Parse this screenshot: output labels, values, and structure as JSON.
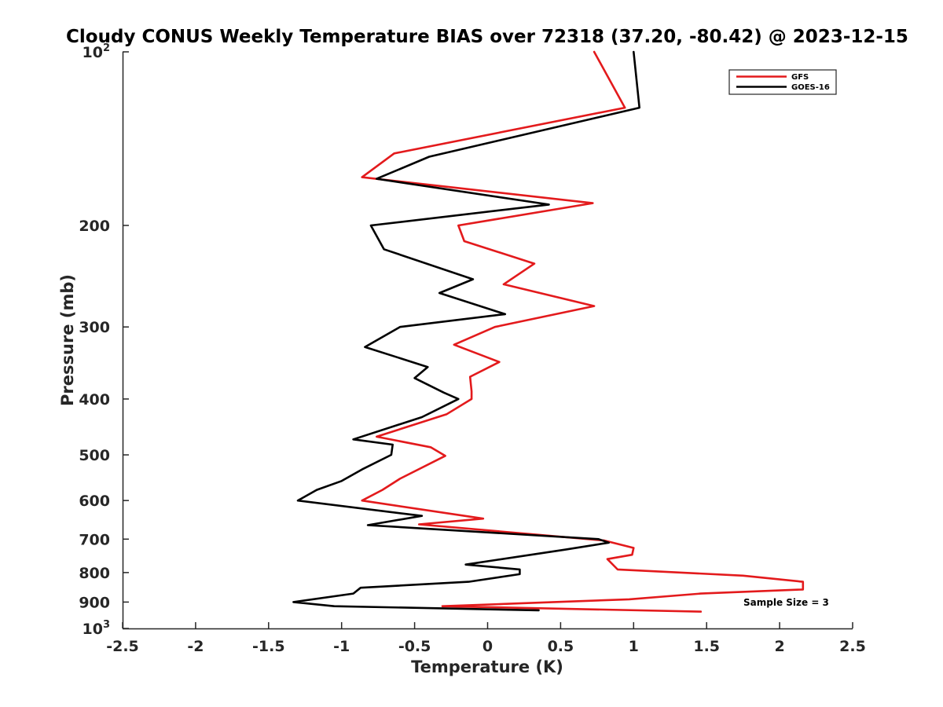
{
  "chart_data": {
    "type": "line",
    "title": "Cloudy CONUS Weekly Temperature BIAS over 72318 (37.20, -80.42) @ 2023-12-15",
    "xlabel": "Temperature (K)",
    "ylabel": "Pressure (mb)",
    "xlim": [
      -2.5,
      2.5
    ],
    "ylim": [
      100,
      1000
    ],
    "y_scale": "log",
    "y_reversed": true,
    "grid": false,
    "legend_position": "top-right",
    "x_ticks": [
      "-2.5",
      "-2",
      "-1.5",
      "-1",
      "-0.5",
      "0",
      "0.5",
      "1",
      "1.5",
      "2",
      "2.5"
    ],
    "x_tick_values": [
      -2.5,
      -2,
      -1.5,
      -1,
      -0.5,
      0,
      0.5,
      1,
      1.5,
      2,
      2.5
    ],
    "y_ticks": [
      {
        "value": 100,
        "base": "10",
        "exp": "2"
      },
      {
        "value": 200,
        "label": "200"
      },
      {
        "value": 300,
        "label": "300"
      },
      {
        "value": 400,
        "label": "400"
      },
      {
        "value": 500,
        "label": "500"
      },
      {
        "value": 600,
        "label": "600"
      },
      {
        "value": 700,
        "label": "700"
      },
      {
        "value": 800,
        "label": "800"
      },
      {
        "value": 900,
        "label": "900"
      },
      {
        "value": 1000,
        "base": "10",
        "exp": "3"
      }
    ],
    "annotation": "Sample Size = 3",
    "series": [
      {
        "name": "GFS",
        "color": "#e31a1c",
        "points": [
          [
            0.73,
            100
          ],
          [
            0.94,
            125
          ],
          [
            -0.64,
            150
          ],
          [
            -0.86,
            165
          ],
          [
            0.72,
            183
          ],
          [
            -0.2,
            200
          ],
          [
            -0.16,
            213
          ],
          [
            0.32,
            233
          ],
          [
            0.11,
            253
          ],
          [
            0.73,
            276
          ],
          [
            0.05,
            300
          ],
          [
            -0.23,
            322
          ],
          [
            0.08,
            345
          ],
          [
            -0.12,
            366
          ],
          [
            -0.11,
            388
          ],
          [
            -0.11,
            400
          ],
          [
            -0.28,
            425
          ],
          [
            -0.76,
            465
          ],
          [
            -0.39,
            485
          ],
          [
            -0.29,
            502
          ],
          [
            -0.6,
            550
          ],
          [
            -0.72,
            575
          ],
          [
            -0.86,
            600
          ],
          [
            -0.03,
            645
          ],
          [
            -0.47,
            660
          ],
          [
            0.8,
            704
          ],
          [
            1.0,
            725
          ],
          [
            0.99,
            745
          ],
          [
            0.82,
            758
          ],
          [
            0.89,
            790
          ],
          [
            1.75,
            810
          ],
          [
            2.16,
            830
          ],
          [
            2.16,
            856
          ],
          [
            1.46,
            870
          ],
          [
            0.97,
            890
          ],
          [
            0.2,
            905
          ],
          [
            -0.31,
            915
          ],
          [
            1.46,
            935
          ]
        ]
      },
      {
        "name": "GOES-16",
        "color": "#000000",
        "points": [
          [
            1.0,
            100
          ],
          [
            1.04,
            125
          ],
          [
            -0.4,
            152
          ],
          [
            -0.76,
            166
          ],
          [
            0.42,
            184
          ],
          [
            -0.8,
            200
          ],
          [
            -0.71,
            220
          ],
          [
            -0.1,
            248
          ],
          [
            -0.33,
            262
          ],
          [
            0.12,
            285
          ],
          [
            -0.6,
            300
          ],
          [
            -0.84,
            325
          ],
          [
            -0.41,
            352
          ],
          [
            -0.5,
            368
          ],
          [
            -0.3,
            390
          ],
          [
            -0.2,
            400
          ],
          [
            -0.45,
            430
          ],
          [
            -0.92,
            470
          ],
          [
            -0.65,
            480
          ],
          [
            -0.66,
            500
          ],
          [
            -0.86,
            530
          ],
          [
            -1.0,
            555
          ],
          [
            -1.17,
            575
          ],
          [
            -1.3,
            600
          ],
          [
            -0.45,
            638
          ],
          [
            -0.82,
            662
          ],
          [
            0.76,
            700
          ],
          [
            0.83,
            710
          ],
          [
            0.53,
            730
          ],
          [
            0.07,
            760
          ],
          [
            -0.15,
            775
          ],
          [
            0.22,
            790
          ],
          [
            0.22,
            805
          ],
          [
            -0.13,
            830
          ],
          [
            -0.87,
            850
          ],
          [
            -0.92,
            870
          ],
          [
            -1.33,
            900
          ],
          [
            -1.05,
            915
          ],
          [
            0.35,
            930
          ]
        ]
      }
    ]
  }
}
